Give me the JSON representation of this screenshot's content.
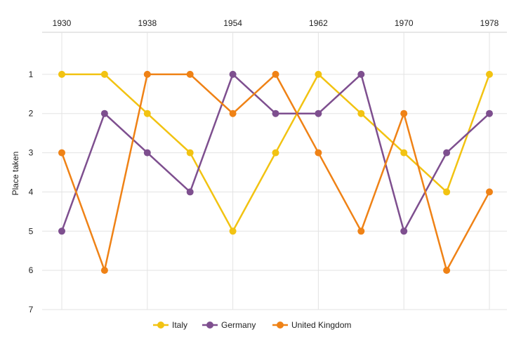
{
  "chart_data": {
    "type": "line",
    "title": "",
    "xlabel": "",
    "ylabel": "Place taken",
    "x": [
      1930,
      1934,
      1938,
      1950,
      1954,
      1958,
      1962,
      1966,
      1970,
      1974,
      1978
    ],
    "x_tick_labels": [
      "1930",
      "1938",
      "1954",
      "1962",
      "1970",
      "1978"
    ],
    "y_ticks": [
      1,
      2,
      3,
      4,
      5,
      6,
      7
    ],
    "ylim": [
      0,
      7
    ],
    "y_inverted": true,
    "grid": true,
    "legend_position": "bottom",
    "series": [
      {
        "name": "Italy",
        "color": "#f2c312",
        "values": [
          1,
          1,
          2,
          3,
          5,
          3,
          1,
          2,
          3,
          4,
          1
        ]
      },
      {
        "name": "Germany",
        "color": "#7e4f8f",
        "values": [
          5,
          2,
          3,
          4,
          1,
          2,
          2,
          1,
          5,
          3,
          2
        ]
      },
      {
        "name": "United Kingdom",
        "color": "#ef8216",
        "values": [
          3,
          6,
          1,
          1,
          2,
          1,
          3,
          5,
          2,
          6,
          4
        ]
      }
    ]
  }
}
